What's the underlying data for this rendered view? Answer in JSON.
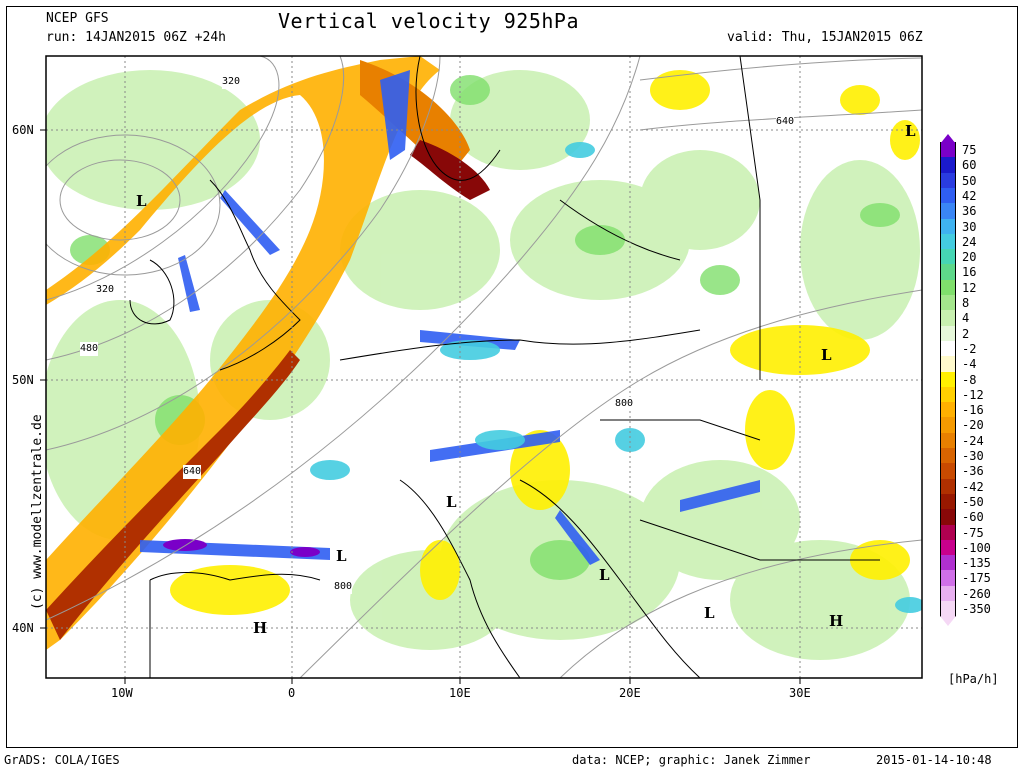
{
  "header": {
    "model": "NCEP GFS",
    "run": "run: 14JAN2015 06Z +24h",
    "title": "Vertical velocity 925hPa",
    "valid": "valid: Thu, 15JAN2015 06Z"
  },
  "footer": {
    "software": "GrADS: COLA/IGES",
    "data_credit": "data: NCEP; graphic: Janek Zimmer",
    "timestamp": "2015-01-14-10:48"
  },
  "side_credit": "(c) www.modellzentrale.de",
  "axes": {
    "lat_ticks": [
      "60N",
      "50N",
      "40N"
    ],
    "lon_ticks": [
      "10W",
      "0",
      "10E",
      "20E",
      "30E"
    ]
  },
  "legend": {
    "unit": "[hPa/h]",
    "levels": [
      "75",
      "60",
      "50",
      "42",
      "36",
      "30",
      "24",
      "20",
      "16",
      "12",
      "8",
      "4",
      "2",
      "-2",
      "-4",
      "-8",
      "-12",
      "-16",
      "-20",
      "-24",
      "-30",
      "-36",
      "-42",
      "-50",
      "-60",
      "-75",
      "-100",
      "-135",
      "-175",
      "-260",
      "-350"
    ],
    "colors": [
      "#7a00c8",
      "#1a1acc",
      "#2a3ce0",
      "#2f5ef2",
      "#3a86f5",
      "#3fb2f0",
      "#44cce0",
      "#46d6b4",
      "#5ed88a",
      "#80df6c",
      "#a4e68c",
      "#c8f0b0",
      "#e6f8da",
      "#ffffff",
      "#fffacc",
      "#fff000",
      "#ffd000",
      "#ffb000",
      "#f59a00",
      "#e88000",
      "#d86400",
      "#c84a00",
      "#b03000",
      "#981800",
      "#880808",
      "#b00050",
      "#c8008c",
      "#b030d0",
      "#d070e8",
      "#e8b0f0",
      "#f5d8f5"
    ],
    "top_color": "#7a00c8",
    "bottom_color": "#f5d8f5"
  },
  "map": {
    "pressure_centers": [
      {
        "label": "L"
      },
      {
        "label": "L"
      },
      {
        "label": "L"
      },
      {
        "label": "L"
      },
      {
        "label": "L"
      },
      {
        "label": "L"
      },
      {
        "label": "L"
      },
      {
        "label": "H"
      },
      {
        "label": "H"
      }
    ],
    "contour_labels": [
      "320",
      "640",
      "320",
      "480",
      "640",
      "800",
      "800"
    ]
  }
}
